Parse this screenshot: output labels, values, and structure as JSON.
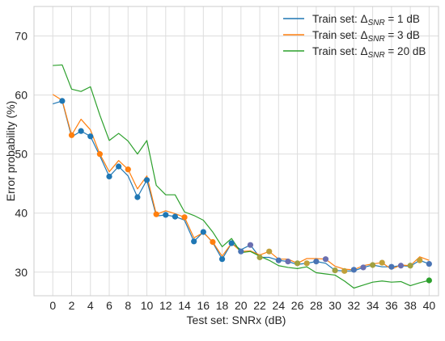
{
  "chart_data": {
    "type": "line",
    "title": "",
    "xlabel": "Test set: SNRx (dB)",
    "ylabel": "Error probability (%)",
    "xlim": [
      -2,
      41
    ],
    "ylim": [
      26,
      75
    ],
    "xticks": [
      0,
      2,
      4,
      6,
      8,
      10,
      12,
      14,
      16,
      18,
      20,
      22,
      24,
      26,
      28,
      30,
      32,
      34,
      36,
      38,
      40
    ],
    "yticks": [
      30,
      40,
      50,
      60,
      70
    ],
    "grid": true,
    "legend_position": "top-right",
    "x": [
      0,
      1,
      2,
      3,
      4,
      5,
      6,
      7,
      8,
      9,
      10,
      11,
      12,
      13,
      14,
      15,
      16,
      17,
      18,
      19,
      20,
      21,
      22,
      23,
      24,
      25,
      26,
      27,
      28,
      29,
      30,
      31,
      32,
      33,
      34,
      35,
      36,
      37,
      38,
      39,
      40
    ],
    "series": [
      {
        "legend_prefix": "Train set: Δ",
        "legend_subscript": "SNR",
        "legend_suffix": " = 1 dB",
        "color": "#1f77b4",
        "values": [
          58.5,
          59.0,
          52.9,
          53.9,
          53.0,
          49.7,
          46.2,
          47.9,
          46.3,
          42.7,
          45.6,
          39.5,
          39.7,
          39.4,
          38.8,
          35.2,
          36.8,
          35.0,
          32.2,
          34.9,
          33.8,
          34.6,
          32.5,
          32.5,
          32.0,
          31.8,
          31.3,
          31.5,
          31.8,
          31.5,
          30.3,
          30.2,
          30.2,
          30.8,
          31.2,
          30.9,
          30.9,
          31.1,
          31.0,
          32.0,
          31.4
        ]
      },
      {
        "legend_prefix": "Train set: Δ",
        "legend_subscript": "SNR",
        "legend_suffix": " = 3 dB",
        "color": "#ff7f0e",
        "values": [
          60.1,
          59.1,
          53.2,
          55.9,
          54.1,
          50.0,
          47.0,
          48.9,
          47.4,
          44.1,
          46.3,
          39.8,
          40.4,
          39.9,
          39.3,
          35.8,
          36.7,
          35.1,
          32.7,
          34.9,
          33.5,
          33.6,
          32.9,
          33.5,
          32.2,
          32.2,
          31.5,
          32.3,
          32.3,
          32.2,
          31.0,
          30.5,
          30.4,
          31.1,
          31.4,
          31.6,
          30.5,
          31.2,
          31.1,
          32.6,
          32.0
        ]
      },
      {
        "legend_prefix": "Train set: Δ",
        "legend_subscript": "SNR",
        "legend_suffix": " = 20 dB",
        "color": "#2ca02c",
        "values": [
          65.0,
          65.1,
          61.0,
          60.6,
          61.4,
          56.6,
          52.3,
          53.5,
          52.2,
          50.0,
          52.3,
          44.7,
          43.1,
          43.1,
          40.2,
          39.6,
          38.8,
          36.8,
          34.3,
          35.7,
          33.3,
          33.5,
          32.7,
          32.0,
          31.1,
          30.8,
          30.6,
          30.9,
          29.9,
          29.7,
          29.5,
          28.5,
          27.3,
          27.8,
          28.3,
          28.5,
          28.3,
          28.4,
          27.7,
          28.2,
          28.6
        ]
      }
    ]
  }
}
